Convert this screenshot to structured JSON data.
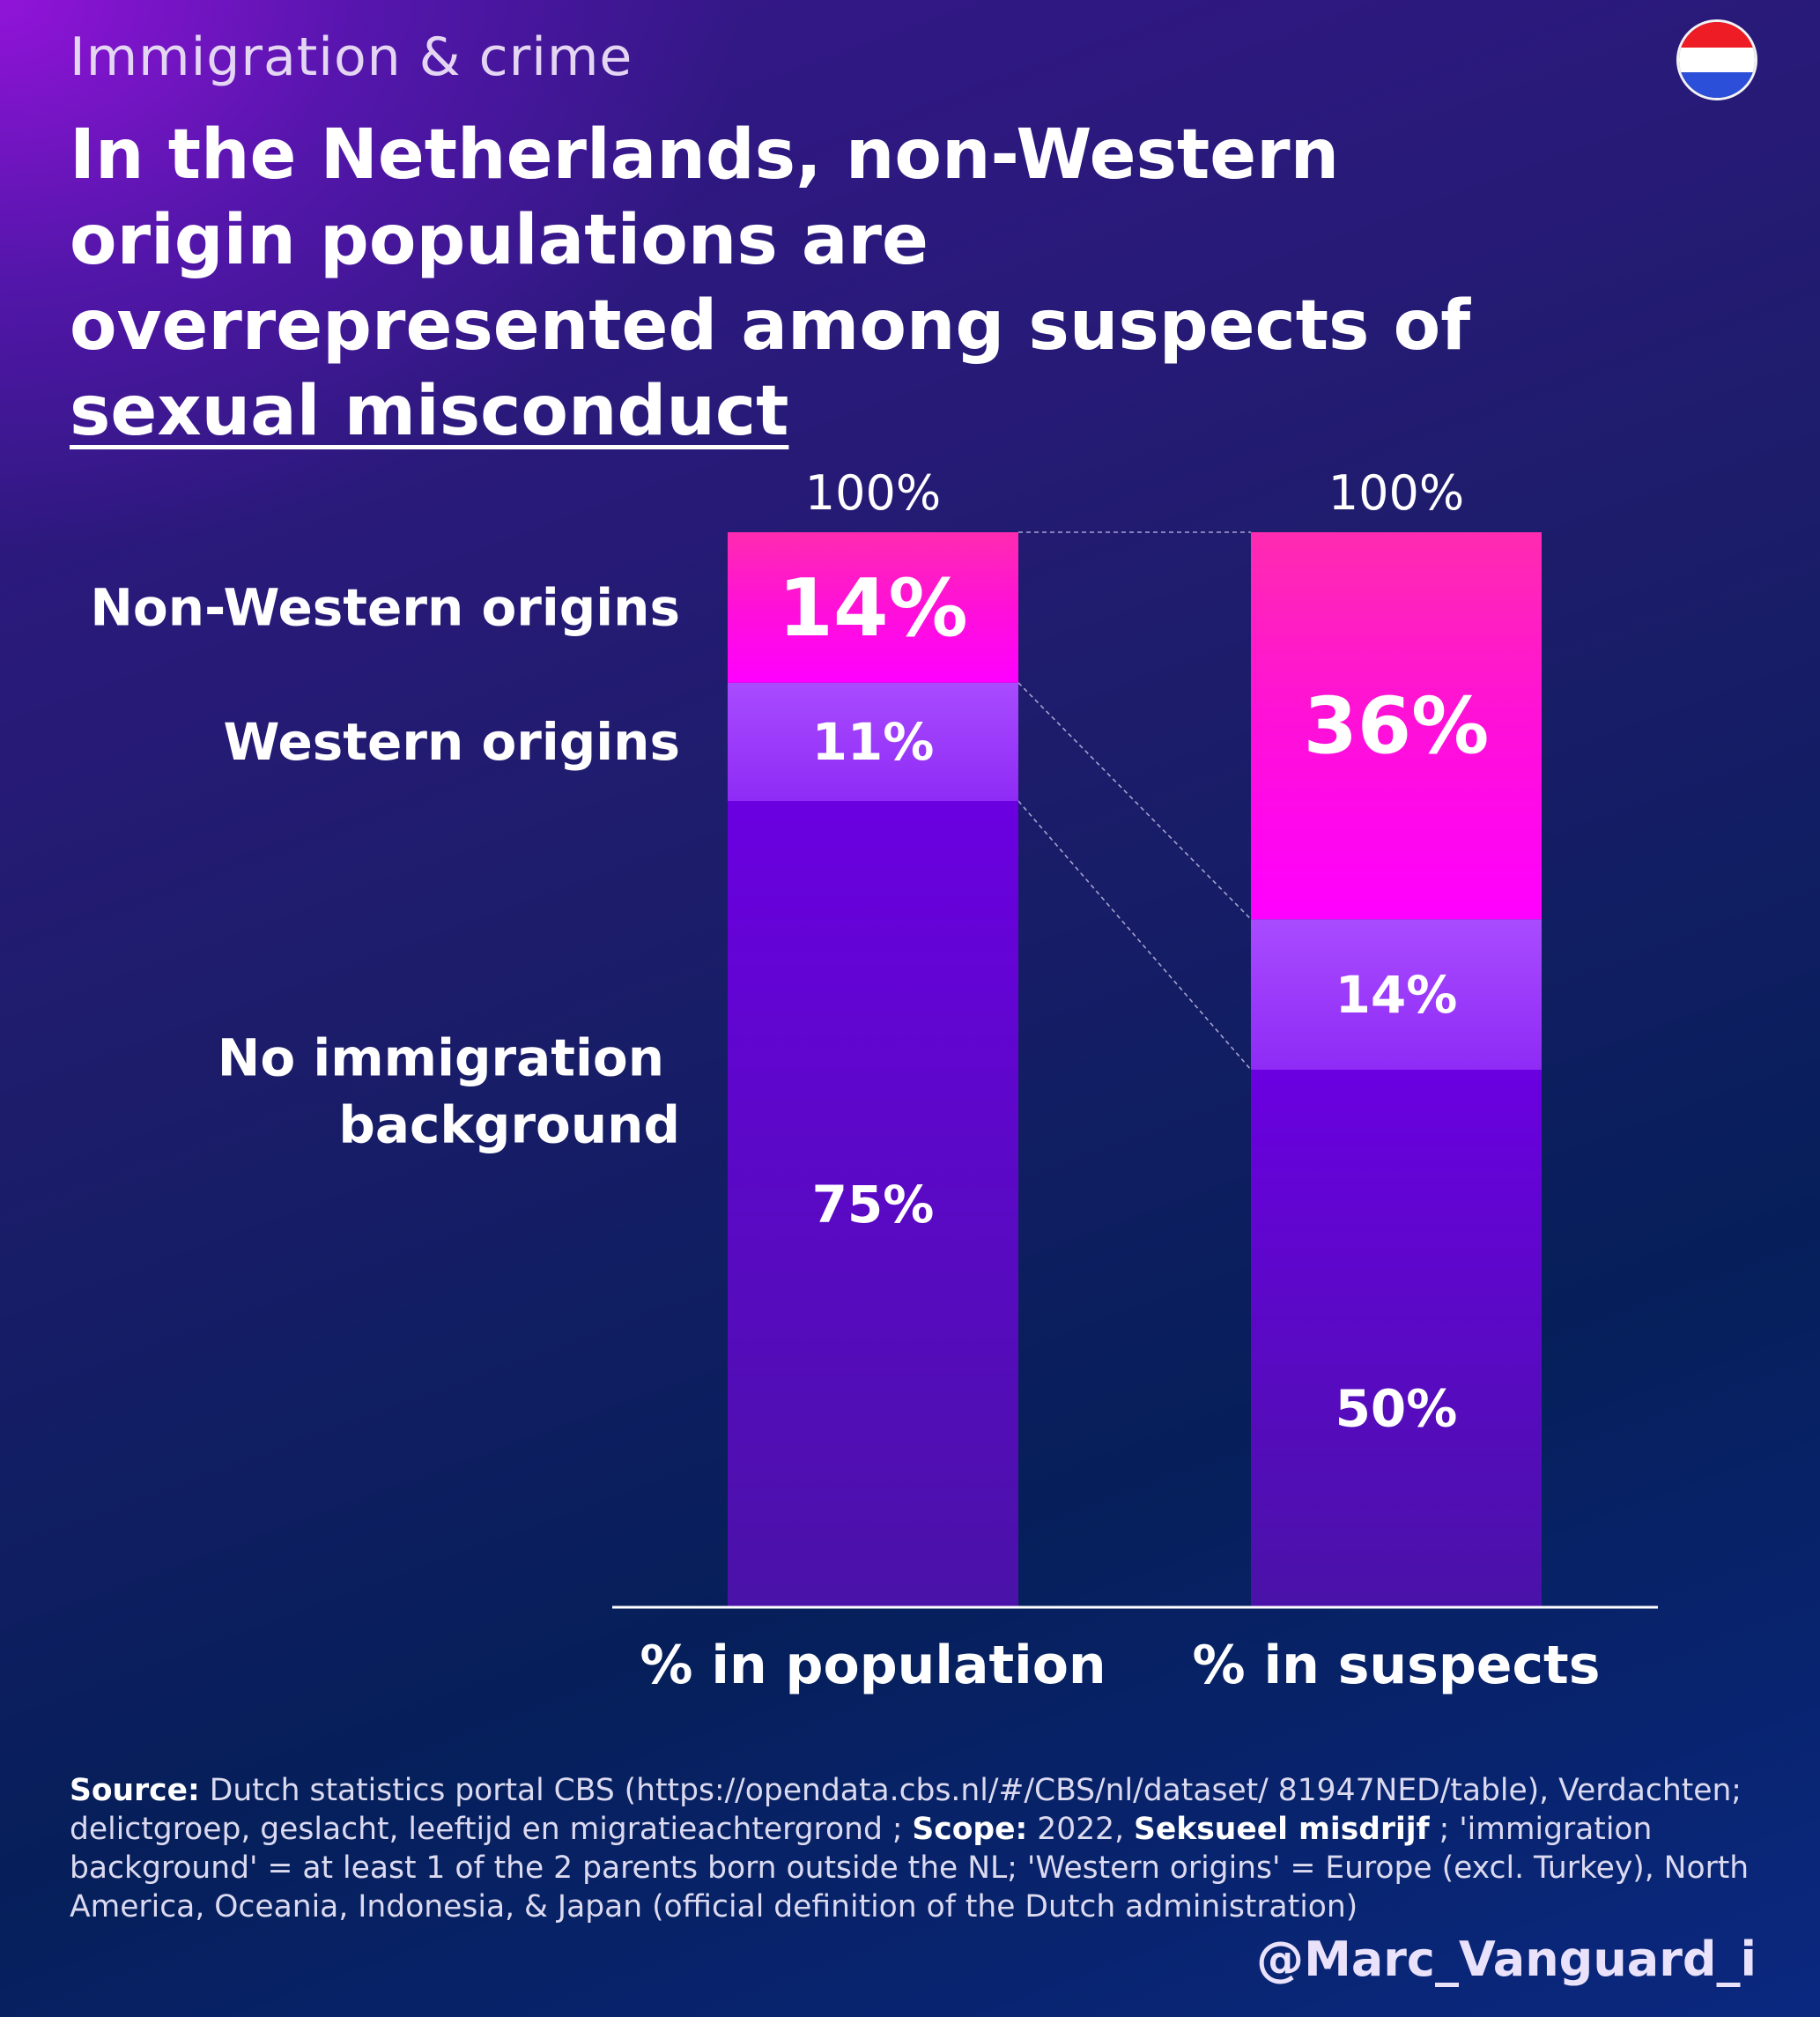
{
  "header": {
    "kicker": "Immigration & crime",
    "title_part1": "In the Netherlands, non-Western origin populations are overrepresented among suspects of ",
    "title_emphasis": "sexual misconduct"
  },
  "flag": {
    "colors": [
      "#ee1c25",
      "#ffffff",
      "#2b4fd8"
    ]
  },
  "chart_data": {
    "type": "bar",
    "stacked": true,
    "categories": [
      "% in population",
      "% in suspects"
    ],
    "totals": [
      "100%",
      "100%"
    ],
    "ylim": [
      0,
      100
    ],
    "grid": false,
    "legend": "left",
    "series": [
      {
        "name": "No immigration background",
        "legend_lines": [
          "No immigration",
          "background"
        ],
        "values": [
          75,
          50
        ],
        "labels": [
          "75%",
          "50%"
        ],
        "color": "#5f0fd6"
      },
      {
        "name": "Western origins",
        "legend_lines": [
          "Western origins"
        ],
        "values": [
          11,
          14
        ],
        "labels": [
          "11%",
          "14%"
        ],
        "color": "#9a3cff"
      },
      {
        "name": "Non-Western origins",
        "legend_lines": [
          "Non-Western origins"
        ],
        "values": [
          14,
          36
        ],
        "labels": [
          "14%",
          "36%"
        ],
        "color": "#ff14dc"
      }
    ]
  },
  "footer": {
    "source_label": "Source:",
    "source_text": " Dutch statistics portal CBS (https://opendata.cbs.nl/#/CBS/nl/dataset/ 81947NED/table), Verdachten; delictgroep, geslacht, leeftijd en migratieachtergrond ; ",
    "scope_label": "Scope:",
    "scope_text": " 2022, ",
    "offense_label": "Seksueel misdrijf",
    "definition_text": " ; 'immigration background' = at least 1 of the 2 parents born outside the NL; 'Western origins' = Europe (excl. Turkey), North America, Oceania, Indonesia, & Japan (official definition of the Dutch administration)",
    "handle": "@Marc_Vanguard_i"
  }
}
